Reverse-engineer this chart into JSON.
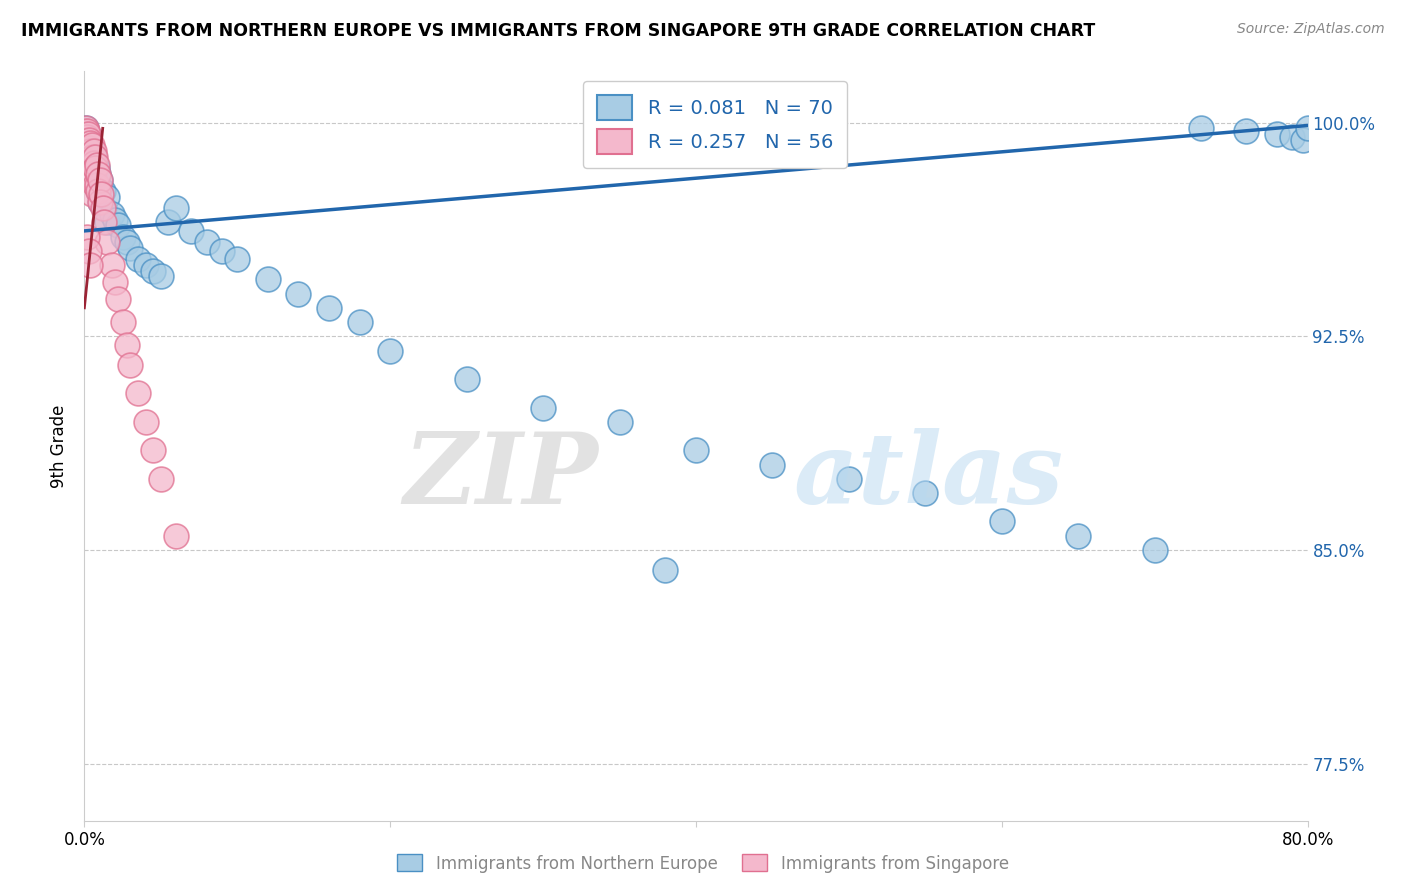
{
  "title": "IMMIGRANTS FROM NORTHERN EUROPE VS IMMIGRANTS FROM SINGAPORE 9TH GRADE CORRELATION CHART",
  "source": "Source: ZipAtlas.com",
  "ylabel": "9th Grade",
  "R_blue": 0.081,
  "N_blue": 70,
  "R_pink": 0.257,
  "N_pink": 56,
  "blue_color": "#a8cce4",
  "blue_edge_color": "#4a90c4",
  "pink_color": "#f4b8cc",
  "pink_edge_color": "#e07090",
  "blue_line_color": "#2166ac",
  "pink_line_color": "#9b2335",
  "x_min": 0.0,
  "x_max": 0.8,
  "y_min": 0.755,
  "y_max": 1.018,
  "ytick_positions": [
    1.0,
    0.925,
    0.85,
    0.775
  ],
  "ytick_labels": [
    "100.0%",
    "92.5%",
    "85.0%",
    "77.5%"
  ],
  "legend_blue_label": "Immigrants from Northern Europe",
  "legend_pink_label": "Immigrants from Singapore",
  "blue_trend_x0": 0.0,
  "blue_trend_y0": 0.962,
  "blue_trend_x1": 0.8,
  "blue_trend_y1": 0.999,
  "pink_trend_x0": 0.0,
  "pink_trend_y0": 0.935,
  "pink_trend_x1": 0.012,
  "pink_trend_y1": 0.998,
  "blue_x": [
    0.0005,
    0.001,
    0.001,
    0.001,
    0.0015,
    0.002,
    0.002,
    0.002,
    0.0025,
    0.003,
    0.003,
    0.003,
    0.004,
    0.004,
    0.004,
    0.005,
    0.005,
    0.005,
    0.006,
    0.006,
    0.007,
    0.007,
    0.008,
    0.008,
    0.009,
    0.009,
    0.01,
    0.01,
    0.012,
    0.013,
    0.015,
    0.015,
    0.018,
    0.02,
    0.022,
    0.025,
    0.028,
    0.03,
    0.035,
    0.04,
    0.045,
    0.05,
    0.055,
    0.06,
    0.07,
    0.08,
    0.09,
    0.1,
    0.12,
    0.14,
    0.16,
    0.18,
    0.2,
    0.25,
    0.3,
    0.35,
    0.4,
    0.45,
    0.5,
    0.55,
    0.6,
    0.65,
    0.7,
    0.73,
    0.76,
    0.78,
    0.79,
    0.797,
    0.8,
    0.38
  ],
  "blue_y": [
    0.997,
    0.998,
    0.995,
    0.993,
    0.996,
    0.994,
    0.99,
    0.988,
    0.996,
    0.993,
    0.989,
    0.985,
    0.992,
    0.988,
    0.983,
    0.99,
    0.986,
    0.98,
    0.988,
    0.984,
    0.986,
    0.98,
    0.984,
    0.978,
    0.982,
    0.976,
    0.98,
    0.972,
    0.976,
    0.97,
    0.974,
    0.965,
    0.968,
    0.966,
    0.964,
    0.96,
    0.958,
    0.956,
    0.952,
    0.95,
    0.948,
    0.946,
    0.965,
    0.97,
    0.962,
    0.958,
    0.955,
    0.952,
    0.945,
    0.94,
    0.935,
    0.93,
    0.92,
    0.91,
    0.9,
    0.895,
    0.885,
    0.88,
    0.875,
    0.87,
    0.86,
    0.855,
    0.85,
    0.998,
    0.997,
    0.996,
    0.995,
    0.994,
    0.998,
    0.843
  ],
  "pink_x": [
    0.0003,
    0.0005,
    0.0007,
    0.001,
    0.001,
    0.001,
    0.001,
    0.0015,
    0.002,
    0.002,
    0.002,
    0.002,
    0.0025,
    0.003,
    0.003,
    0.003,
    0.003,
    0.004,
    0.004,
    0.004,
    0.004,
    0.005,
    0.005,
    0.005,
    0.005,
    0.005,
    0.006,
    0.006,
    0.006,
    0.007,
    0.007,
    0.007,
    0.008,
    0.008,
    0.009,
    0.009,
    0.01,
    0.01,
    0.011,
    0.012,
    0.013,
    0.015,
    0.018,
    0.02,
    0.022,
    0.025,
    0.028,
    0.03,
    0.035,
    0.04,
    0.045,
    0.05,
    0.06,
    0.002,
    0.003,
    0.004
  ],
  "pink_y": [
    0.997,
    0.996,
    0.995,
    0.998,
    0.994,
    0.99,
    0.986,
    0.997,
    0.995,
    0.992,
    0.988,
    0.984,
    0.996,
    0.994,
    0.991,
    0.988,
    0.983,
    0.993,
    0.99,
    0.986,
    0.98,
    0.992,
    0.988,
    0.985,
    0.98,
    0.975,
    0.99,
    0.986,
    0.98,
    0.988,
    0.984,
    0.978,
    0.985,
    0.978,
    0.982,
    0.976,
    0.98,
    0.972,
    0.975,
    0.97,
    0.965,
    0.958,
    0.95,
    0.944,
    0.938,
    0.93,
    0.922,
    0.915,
    0.905,
    0.895,
    0.885,
    0.875,
    0.855,
    0.96,
    0.955,
    0.95
  ]
}
